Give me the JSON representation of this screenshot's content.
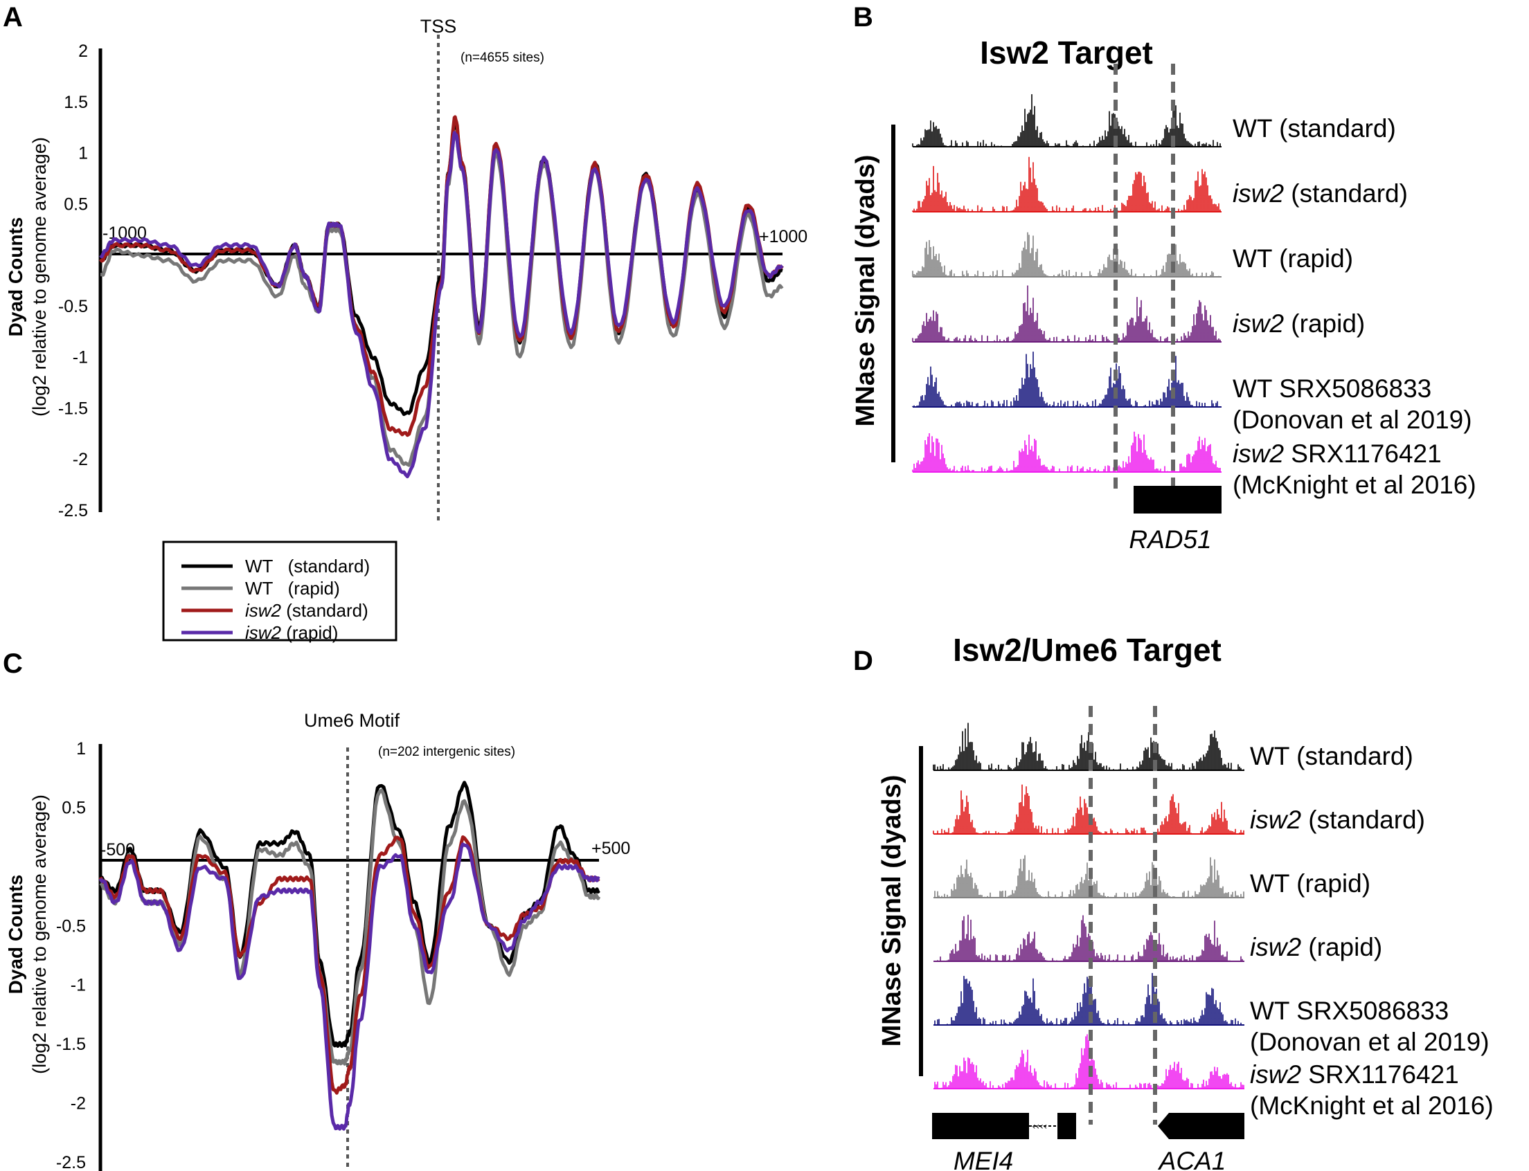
{
  "panels": {
    "A": {
      "letter": "A",
      "chart_data": {
        "type": "line",
        "title": "",
        "ylabel_bold": "Dyad Counts",
        "ylabel": "(log2 relative to genome average)",
        "xlim": [
          -1000,
          1000
        ],
        "ylim": [
          -2.5,
          2
        ],
        "yticks": [
          "2",
          "1.5",
          "1",
          "0.5",
          "-0.5",
          "-1",
          "-1.5",
          "-2",
          "-2.5"
        ],
        "ytick_values": [
          2,
          1.5,
          1,
          0.5,
          -0.5,
          -1,
          -1.5,
          -2,
          -2.5
        ],
        "x_start_label": "-1000",
        "x_end_label": "+1000",
        "vline_label": "TSS",
        "vline_x": 0,
        "site_note": "(n=4655 sites)",
        "series": [
          {
            "name": "WT (standard)",
            "color": "#000000",
            "x": [
              -1000,
              -960,
              -880,
              -800,
              -720,
              -640,
              -560,
              -480,
              -430,
              -400,
              -360,
              -330,
              -300,
              -250,
              -200,
              -150,
              -100,
              -50,
              0,
              20,
              40,
              60,
              110,
              160,
              230,
              300,
              380,
              450,
              520,
              600,
              680,
              750,
              830,
              900,
              960,
              1000
            ],
            "y": [
              -0.05,
              0.1,
              0.1,
              0.05,
              -0.15,
              0.05,
              0.05,
              -0.3,
              0.1,
              -0.2,
              -0.5,
              0.3,
              0.3,
              -0.6,
              -1.0,
              -1.45,
              -1.55,
              -1.1,
              -0.2,
              0.8,
              1.3,
              0.9,
              -0.7,
              1.05,
              -0.85,
              0.95,
              -0.8,
              0.9,
              -0.75,
              0.8,
              -0.7,
              0.65,
              -0.6,
              0.45,
              -0.25,
              -0.15
            ]
          },
          {
            "name": "WT (rapid)",
            "color": "#777777",
            "x": [
              -1000,
              -960,
              -880,
              -800,
              -720,
              -640,
              -560,
              -480,
              -430,
              -400,
              -360,
              -330,
              -300,
              -250,
              -200,
              -150,
              -100,
              -50,
              0,
              20,
              40,
              60,
              110,
              160,
              230,
              300,
              380,
              450,
              520,
              600,
              680,
              750,
              830,
              900,
              960,
              1000
            ],
            "y": [
              -0.2,
              0.05,
              0.0,
              -0.05,
              -0.25,
              -0.05,
              -0.05,
              -0.4,
              0.0,
              -0.3,
              -0.55,
              0.25,
              0.25,
              -0.7,
              -1.2,
              -1.9,
              -2.05,
              -1.6,
              -0.3,
              0.7,
              1.2,
              0.85,
              -0.85,
              1.0,
              -1.0,
              0.9,
              -0.9,
              0.85,
              -0.85,
              0.75,
              -0.8,
              0.6,
              -0.7,
              0.4,
              -0.4,
              -0.3
            ]
          },
          {
            "name": "isw2 (standard)",
            "color": "#a01a1a",
            "x": [
              -1000,
              -960,
              -880,
              -800,
              -720,
              -640,
              -560,
              -480,
              -430,
              -400,
              -360,
              -330,
              -300,
              -250,
              -200,
              -150,
              -100,
              -50,
              0,
              20,
              40,
              60,
              110,
              160,
              230,
              300,
              380,
              450,
              520,
              600,
              680,
              750,
              830,
              900,
              960,
              1000
            ],
            "y": [
              -0.05,
              0.1,
              0.1,
              0.05,
              -0.15,
              0.05,
              0.05,
              -0.3,
              0.1,
              -0.2,
              -0.5,
              0.3,
              0.3,
              -0.7,
              -1.15,
              -1.7,
              -1.75,
              -1.3,
              -0.25,
              0.8,
              1.35,
              0.9,
              -0.75,
              1.1,
              -0.85,
              0.95,
              -0.8,
              0.9,
              -0.75,
              0.8,
              -0.7,
              0.7,
              -0.55,
              0.5,
              -0.2,
              -0.1
            ]
          },
          {
            "name": "isw2 (rapid)",
            "color": "#5a2aa8",
            "x": [
              -1000,
              -960,
              -880,
              -800,
              -720,
              -640,
              -560,
              -480,
              -430,
              -400,
              -360,
              -330,
              -300,
              -250,
              -200,
              -150,
              -100,
              -50,
              0,
              20,
              40,
              60,
              110,
              160,
              230,
              300,
              380,
              450,
              520,
              600,
              680,
              750,
              830,
              900,
              960,
              1000
            ],
            "y": [
              0.0,
              0.15,
              0.15,
              0.1,
              -0.1,
              0.1,
              0.1,
              -0.3,
              0.1,
              -0.2,
              -0.55,
              0.3,
              0.3,
              -0.75,
              -1.3,
              -2.0,
              -2.15,
              -1.7,
              -0.3,
              0.75,
              1.2,
              0.85,
              -0.75,
              1.05,
              -0.8,
              0.95,
              -0.75,
              0.85,
              -0.7,
              0.75,
              -0.65,
              0.65,
              -0.5,
              0.45,
              -0.2,
              -0.1
            ]
          }
        ],
        "legend": [
          "WT   (standard)",
          "WT   (rapid)",
          "isw2 (standard)",
          "isw2 (rapid)"
        ]
      }
    },
    "B": {
      "letter": "B",
      "title": "Isw2 Target",
      "ylabel": "MNase Signal (dyads)",
      "tracks": [
        {
          "label_italic": "",
          "label": "WT (standard)",
          "label2": "",
          "color": "#000000"
        },
        {
          "label_italic": "isw2",
          "label": " (standard)",
          "label2": "",
          "color": "#e01515"
        },
        {
          "label_italic": "",
          "label": "WT (rapid)",
          "label2": "",
          "color": "#808080"
        },
        {
          "label_italic": "isw2",
          "label": " (rapid)",
          "label2": "",
          "color": "#6a1a7a"
        },
        {
          "label_italic": "",
          "label": "WT SRX5086833",
          "label2": "(Donovan et al 2019)",
          "color": "#10107a"
        },
        {
          "label_italic": "isw2",
          "label": " SRX1176421",
          "label2": "(McKnight et al 2016)",
          "color": "#ee1aee"
        }
      ],
      "gene": "RAD51"
    },
    "C": {
      "letter": "C",
      "chart_data": {
        "type": "line",
        "title": "",
        "ylabel_bold": "Dyad Counts",
        "ylabel": "(log2 relative to genome average)",
        "xlim": [
          -500,
          500
        ],
        "ylim": [
          -2.5,
          1
        ],
        "yticks": [
          "1",
          "0.5",
          "-0.5",
          "-1",
          "-1.5",
          "-2",
          "-2.5"
        ],
        "ytick_values": [
          1,
          0.5,
          -0.5,
          -1,
          -1.5,
          -2,
          -2.5
        ],
        "x_start_label": "-500",
        "x_end_label": "+500",
        "vline_label": "Ume6 Motif",
        "vline_x": 0,
        "site_note": "(n=202 intergenic sites)",
        "series": [
          {
            "name": "WT (standard)",
            "color": "#000000",
            "x": [
              -500,
              -470,
              -440,
              -410,
              -380,
              -340,
              -300,
              -250,
              -220,
              -180,
              -140,
              -110,
              -80,
              -60,
              -30,
              -10,
              0,
              20,
              60,
              100,
              130,
              160,
              200,
              230,
              280,
              320,
              350,
              380,
              420,
              450,
              480,
              500
            ],
            "y": [
              -0.1,
              -0.2,
              0.15,
              -0.2,
              -0.2,
              -0.55,
              0.3,
              0.0,
              -0.75,
              0.2,
              0.2,
              0.3,
              0.1,
              -0.8,
              -1.5,
              -1.5,
              -1.4,
              -0.8,
              0.7,
              0.3,
              -0.3,
              -0.8,
              0.35,
              0.7,
              -0.5,
              -0.8,
              -0.4,
              -0.3,
              0.35,
              0.1,
              -0.2,
              -0.2
            ]
          },
          {
            "name": "WT (rapid)",
            "color": "#777777",
            "x": [
              -500,
              -470,
              -440,
              -410,
              -380,
              -340,
              -300,
              -250,
              -220,
              -180,
              -140,
              -110,
              -80,
              -60,
              -30,
              -10,
              0,
              20,
              60,
              100,
              130,
              160,
              200,
              230,
              280,
              320,
              350,
              380,
              420,
              450,
              480,
              500
            ],
            "y": [
              -0.15,
              -0.3,
              0.1,
              -0.3,
              -0.3,
              -0.65,
              0.25,
              -0.1,
              -0.9,
              0.15,
              0.1,
              0.2,
              0.0,
              -0.9,
              -1.65,
              -1.65,
              -1.55,
              -0.9,
              0.65,
              0.2,
              -0.5,
              -1.15,
              0.2,
              0.55,
              -0.5,
              -0.9,
              -0.5,
              -0.4,
              0.2,
              0.05,
              -0.25,
              -0.25
            ]
          },
          {
            "name": "isw2 (standard)",
            "color": "#a01a1a",
            "x": [
              -500,
              -470,
              -440,
              -410,
              -380,
              -340,
              -300,
              -250,
              -220,
              -180,
              -140,
              -110,
              -80,
              -60,
              -30,
              -10,
              0,
              20,
              60,
              100,
              130,
              160,
              200,
              230,
              280,
              320,
              350,
              380,
              420,
              450,
              480,
              500
            ],
            "y": [
              -0.1,
              -0.25,
              0.1,
              -0.2,
              -0.2,
              -0.6,
              0.1,
              -0.05,
              -0.75,
              -0.3,
              -0.1,
              -0.1,
              -0.1,
              -0.9,
              -1.9,
              -1.85,
              -1.7,
              -1.1,
              0.1,
              0.25,
              -0.4,
              -0.85,
              -0.2,
              0.25,
              -0.5,
              -0.6,
              -0.4,
              -0.35,
              0.05,
              0.05,
              -0.1,
              -0.1
            ]
          },
          {
            "name": "isw2 (rapid)",
            "color": "#5a2aa8",
            "x": [
              -500,
              -470,
              -440,
              -410,
              -380,
              -340,
              -300,
              -250,
              -220,
              -180,
              -140,
              -110,
              -80,
              -60,
              -30,
              -10,
              0,
              20,
              60,
              100,
              130,
              160,
              200,
              230,
              280,
              320,
              350,
              380,
              420,
              450,
              480,
              500
            ],
            "y": [
              -0.1,
              -0.3,
              0.05,
              -0.3,
              -0.3,
              -0.7,
              0.0,
              -0.1,
              -0.95,
              -0.25,
              -0.2,
              -0.2,
              -0.2,
              -1.0,
              -2.2,
              -2.2,
              -2.0,
              -1.3,
              0.0,
              0.1,
              -0.5,
              -0.9,
              -0.3,
              0.2,
              -0.5,
              -0.7,
              -0.45,
              -0.3,
              0.0,
              0.0,
              -0.1,
              -0.1
            ]
          }
        ]
      }
    },
    "D": {
      "letter": "D",
      "title": "Isw2/Ume6 Target",
      "ylabel": "MNase Signal (dyads)",
      "tracks": [
        {
          "label_italic": "",
          "label": "WT (standard)",
          "label2": "",
          "color": "#000000"
        },
        {
          "label_italic": "isw2",
          "label": " (standard)",
          "label2": "",
          "color": "#e01515"
        },
        {
          "label_italic": "",
          "label": "WT (rapid)",
          "label2": "",
          "color": "#808080"
        },
        {
          "label_italic": "isw2",
          "label": " (rapid)",
          "label2": "",
          "color": "#6a1a7a"
        },
        {
          "label_italic": "",
          "label": "WT SRX5086833",
          "label2": "(Donovan et al 2019)",
          "color": "#10107a"
        },
        {
          "label_italic": "isw2",
          "label": " SRX1176421",
          "label2": "(McKnight et al 2016)",
          "color": "#ee1aee"
        }
      ],
      "genes": [
        "MEI4",
        "ACA1"
      ]
    }
  }
}
